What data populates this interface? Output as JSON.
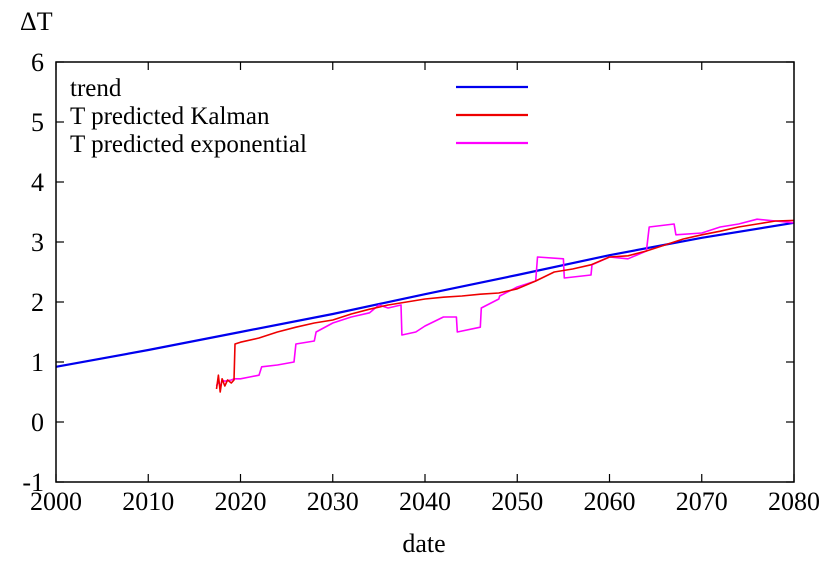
{
  "chart_data": {
    "type": "line",
    "xlabel": "date",
    "ylabel": "ΔT",
    "xlim": [
      2000,
      2080
    ],
    "ylim": [
      -1,
      6
    ],
    "x_ticks": [
      "2000",
      "2010",
      "2020",
      "2030",
      "2040",
      "2050",
      "2060",
      "2070",
      "2080"
    ],
    "y_ticks": [
      "-1",
      "0",
      "1",
      "2",
      "3",
      "4",
      "5",
      "6"
    ],
    "grid": false,
    "legend_position": "top-left",
    "series": [
      {
        "name": "trend",
        "color": "#0000ee",
        "x": [
          2000,
          2010,
          2020,
          2030,
          2040,
          2050,
          2060,
          2070,
          2080
        ],
        "y": [
          0.92,
          1.2,
          1.5,
          1.8,
          2.13,
          2.45,
          2.78,
          3.07,
          3.32
        ]
      },
      {
        "name": "T predicted Kalman",
        "color": "#ee0000",
        "x": [
          2017.4,
          2017.6,
          2017.8,
          2018.0,
          2018.3,
          2018.6,
          2019.0,
          2019.3,
          2019.4,
          2020,
          2022,
          2024,
          2026,
          2028,
          2030,
          2032,
          2034,
          2036,
          2038,
          2040,
          2042,
          2044,
          2046,
          2048,
          2050,
          2052,
          2054,
          2056,
          2058,
          2060,
          2062,
          2064,
          2066,
          2068,
          2070,
          2072,
          2074,
          2076,
          2078,
          2080
        ],
        "y": [
          0.55,
          0.78,
          0.5,
          0.72,
          0.6,
          0.7,
          0.65,
          0.7,
          1.3,
          1.33,
          1.4,
          1.5,
          1.58,
          1.65,
          1.7,
          1.8,
          1.88,
          1.95,
          2.0,
          2.05,
          2.08,
          2.1,
          2.13,
          2.15,
          2.22,
          2.35,
          2.5,
          2.55,
          2.62,
          2.75,
          2.77,
          2.85,
          2.95,
          3.05,
          3.12,
          3.18,
          3.25,
          3.3,
          3.35,
          3.36
        ]
      },
      {
        "name": "T predicted exponential",
        "color": "#ff00ff",
        "x": [
          2017.4,
          2017.6,
          2017.8,
          2018.0,
          2018.3,
          2019.0,
          2019.3,
          2020,
          2021,
          2022,
          2022.3,
          2024,
          2025.8,
          2026,
          2028,
          2028.2,
          2030,
          2032,
          2034,
          2035,
          2036,
          2037.4,
          2037.5,
          2039,
          2040,
          2042,
          2043.4,
          2043.5,
          2046,
          2046.1,
          2048,
          2048.1,
          2050,
          2052,
          2052.2,
          2055,
          2055.1,
          2058,
          2058.1,
          2060,
          2062,
          2064,
          2064.3,
          2067,
          2067.2,
          2070,
          2072,
          2074,
          2076,
          2078,
          2080
        ],
        "y": [
          0.6,
          0.68,
          0.58,
          0.7,
          0.68,
          0.7,
          0.72,
          0.72,
          0.75,
          0.78,
          0.92,
          0.95,
          1.0,
          1.3,
          1.35,
          1.5,
          1.65,
          1.75,
          1.82,
          1.95,
          1.9,
          1.95,
          1.45,
          1.5,
          1.6,
          1.75,
          1.75,
          1.5,
          1.58,
          1.9,
          2.05,
          2.1,
          2.25,
          2.35,
          2.75,
          2.72,
          2.4,
          2.45,
          2.62,
          2.75,
          2.72,
          2.85,
          3.25,
          3.3,
          3.12,
          3.15,
          3.25,
          3.3,
          3.38,
          3.35,
          3.32
        ]
      }
    ]
  }
}
